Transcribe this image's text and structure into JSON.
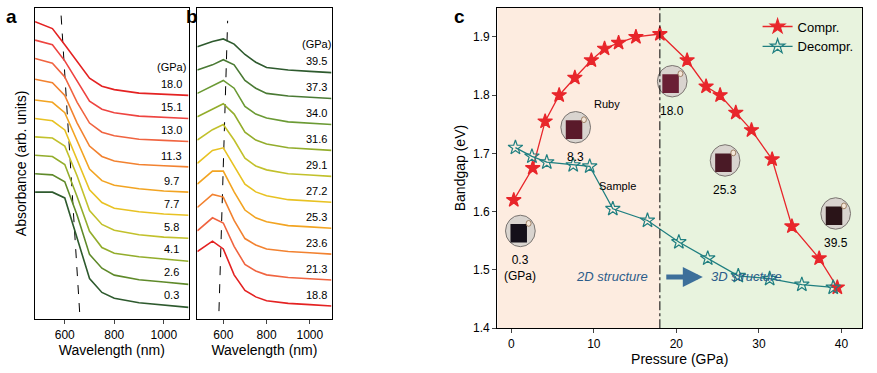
{
  "chart_data": [
    {
      "title": "a",
      "type": "line",
      "xlabel": "Wavelength (nm)",
      "ylabel": "Absorbance (arb. units)",
      "unit_label": "(GPa)",
      "tick_labels": "x",
      "xlim": [
        480,
        1100
      ],
      "xticks": [
        600,
        800,
        1000
      ],
      "ylim": [
        0,
        13.5
      ],
      "x": [
        480,
        550,
        600,
        650,
        700,
        750,
        800,
        900,
        1000,
        1100
      ],
      "series": [
        {
          "name": "0.3",
          "color": "#2e5a2e",
          "values": [
            5.5,
            5.5,
            5.25,
            3.5,
            1.75,
            1.15,
            0.9,
            0.7,
            0.6,
            0.5
          ]
        },
        {
          "name": "2.6",
          "color": "#5f8a2a",
          "values": [
            6.3,
            6.25,
            5.95,
            4.5,
            2.8,
            2.2,
            1.9,
            1.7,
            1.6,
            1.5
          ]
        },
        {
          "name": "4.1",
          "color": "#93ad2c",
          "values": [
            7.1,
            7.05,
            6.7,
            5.3,
            3.8,
            3.1,
            2.85,
            2.7,
            2.6,
            2.5
          ]
        },
        {
          "name": "5.8",
          "color": "#c2c12c",
          "values": [
            7.9,
            7.85,
            7.5,
            6.2,
            4.7,
            4.1,
            3.85,
            3.65,
            3.55,
            3.5
          ]
        },
        {
          "name": "7.7",
          "color": "#e8c223",
          "values": [
            8.7,
            8.6,
            8.2,
            6.9,
            5.6,
            5.05,
            4.8,
            4.65,
            4.55,
            4.5
          ]
        },
        {
          "name": "9.7",
          "color": "#f2a422",
          "values": [
            9.5,
            9.4,
            8.95,
            7.7,
            6.5,
            6.0,
            5.8,
            5.65,
            5.55,
            5.5
          ]
        },
        {
          "name": "11.3",
          "color": "#f28230",
          "values": [
            10.4,
            10.25,
            9.7,
            8.5,
            7.5,
            7.05,
            6.85,
            6.7,
            6.65,
            6.6
          ]
        },
        {
          "name": "13.0",
          "color": "#f06440",
          "values": [
            11.3,
            11.1,
            10.5,
            9.4,
            8.5,
            8.1,
            7.95,
            7.8,
            7.75,
            7.7
          ]
        },
        {
          "name": "15.1",
          "color": "#ee4440",
          "values": [
            12.1,
            11.9,
            11.2,
            10.3,
            9.45,
            9.1,
            8.95,
            8.8,
            8.75,
            8.7
          ]
        },
        {
          "name": "18.0",
          "color": "#e42222",
          "values": [
            12.9,
            12.6,
            11.9,
            11.2,
            10.45,
            10.1,
            9.95,
            9.8,
            9.75,
            9.7
          ]
        }
      ],
      "guide_line": {
        "x": [
          660,
          585
        ],
        "y": [
          0.3,
          13.2
        ],
        "line_style": "dash",
        "color": "#000000"
      }
    },
    {
      "title": "b",
      "type": "line",
      "xlabel": "Wavelength (nm)",
      "unit_label": "(GPa)",
      "tick_labels": "x",
      "xlim": [
        480,
        1100
      ],
      "xticks": [
        600,
        800,
        1000
      ],
      "ylim": [
        0,
        12
      ],
      "x": [
        480,
        550,
        600,
        650,
        700,
        750,
        800,
        900,
        1000,
        1100
      ],
      "series": [
        {
          "name": "18.8",
          "color": "#e42222",
          "values": [
            2.6,
            3.0,
            2.7,
            1.7,
            1.1,
            0.85,
            0.7,
            0.6,
            0.55,
            0.5
          ]
        },
        {
          "name": "21.3",
          "color": "#f06440",
          "values": [
            3.4,
            3.9,
            3.7,
            2.8,
            2.1,
            1.85,
            1.7,
            1.6,
            1.55,
            1.5
          ]
        },
        {
          "name": "23.6",
          "color": "#f28230",
          "values": [
            4.3,
            4.8,
            4.7,
            3.8,
            3.1,
            2.85,
            2.7,
            2.6,
            2.55,
            2.5
          ]
        },
        {
          "name": "25.3",
          "color": "#f2a422",
          "values": [
            5.2,
            5.7,
            5.7,
            4.9,
            4.2,
            3.9,
            3.75,
            3.6,
            3.55,
            3.5
          ]
        },
        {
          "name": "27.2",
          "color": "#e8c223",
          "values": [
            6.0,
            6.5,
            6.6,
            5.9,
            5.2,
            4.9,
            4.75,
            4.6,
            4.55,
            4.5
          ]
        },
        {
          "name": "29.1",
          "color": "#c2c12c",
          "values": [
            6.9,
            7.3,
            7.5,
            6.9,
            6.2,
            5.9,
            5.75,
            5.6,
            5.55,
            5.5
          ]
        },
        {
          "name": "31.6",
          "color": "#93ad2c",
          "values": [
            7.8,
            8.1,
            8.3,
            7.9,
            7.2,
            6.9,
            6.75,
            6.6,
            6.55,
            6.5
          ]
        },
        {
          "name": "34.0",
          "color": "#6b9a34",
          "values": [
            8.7,
            9.0,
            9.2,
            8.9,
            8.2,
            7.9,
            7.75,
            7.6,
            7.55,
            7.5
          ]
        },
        {
          "name": "37.3",
          "color": "#4a7a34",
          "values": [
            9.6,
            9.8,
            10.0,
            9.8,
            9.2,
            8.9,
            8.7,
            8.6,
            8.55,
            8.5
          ]
        },
        {
          "name": "39.5",
          "color": "#2e5a2e",
          "values": [
            10.5,
            10.7,
            10.8,
            10.6,
            10.2,
            9.9,
            9.7,
            9.6,
            9.55,
            9.5
          ]
        }
      ],
      "guide_line": {
        "x": [
          580,
          620
        ],
        "y": [
          0.3,
          11.5
        ],
        "line_style": "dash",
        "color": "#000000"
      }
    },
    {
      "title": "c",
      "type": "line",
      "xlabel": "Pressure (GPa)",
      "ylabel": "Bandgap (eV)",
      "xlim": [
        -1.7,
        42.5
      ],
      "xticks": [
        0,
        10,
        20,
        30,
        40
      ],
      "ylim": [
        1.4,
        1.95
      ],
      "yticks": [
        1.4,
        1.5,
        1.6,
        1.7,
        1.8,
        1.9
      ],
      "legend": "top right",
      "series": [
        {
          "name": "Compr.",
          "color": "#e8262b",
          "marker": "star",
          "x": [
            0.3,
            2.6,
            4.1,
            5.8,
            7.7,
            9.7,
            11.3,
            13.0,
            15.1,
            18.0,
            21.3,
            23.6,
            25.3,
            27.2,
            29.1,
            31.6,
            34.0,
            37.3,
            39.5
          ],
          "values": [
            1.62,
            1.675,
            1.755,
            1.8,
            1.83,
            1.86,
            1.88,
            1.89,
            1.9,
            1.905,
            1.86,
            1.815,
            1.8,
            1.77,
            1.74,
            1.69,
            1.575,
            1.52,
            1.47
          ]
        },
        {
          "name": "Decompr.",
          "color": "#1f7f80",
          "marker": "star-open",
          "x": [
            0.5,
            2.5,
            4.3,
            7.5,
            9.5,
            12.3,
            16.5,
            20.3,
            23.8,
            27.5,
            31.3,
            35.2,
            39.0
          ],
          "values": [
            1.71,
            1.695,
            1.685,
            1.68,
            1.678,
            1.605,
            1.585,
            1.548,
            1.52,
            1.49,
            1.485,
            1.475,
            1.47
          ]
        }
      ],
      "boundary": 18,
      "regions": [
        "2D structure",
        "3D structure"
      ],
      "photo_labels": [
        "0.3",
        "8.3",
        "18.0",
        "25.3",
        "39.5"
      ],
      "photo_unit": "(GPa)",
      "photo_texts": [
        "Ruby",
        "Sample"
      ]
    }
  ]
}
